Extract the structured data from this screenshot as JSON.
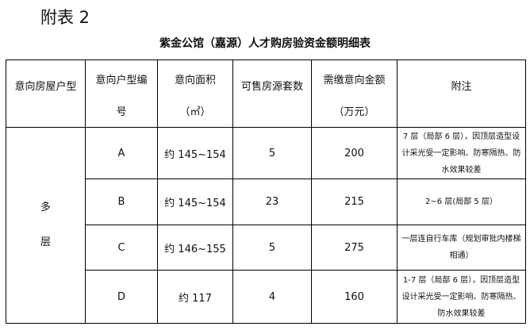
{
  "label": "附表 2",
  "title": "紫金公馆（嘉源）人才购房验资金额明细表",
  "headers": {
    "type": "意向房屋户型",
    "code": [
      "意向户型编",
      "号"
    ],
    "area": [
      "意向面积",
      "（㎡）"
    ],
    "count": "可售房源套数",
    "amount": [
      "需缴意向金额",
      "（万元）"
    ],
    "note": "附注"
  },
  "group": [
    "多",
    "层"
  ],
  "rows": [
    {
      "code": "A",
      "area": "约 145~154",
      "count": "5",
      "amount": "200",
      "note": "7 层（局部 6 层），因顶层造型设计采光受一定影响、防寒隔热、防水效果较差"
    },
    {
      "code": "B",
      "area": "约 145~154",
      "count": "23",
      "amount": "215",
      "note": "2~6 层(局部 5 层）"
    },
    {
      "code": "C",
      "area": "约 146~155",
      "count": "5",
      "amount": "275",
      "note": "一层连自行车库（规划审批内楼梯相通）"
    },
    {
      "code": "D",
      "area": "约 117",
      "count": "4",
      "amount": "160",
      "note": "1-7 层（局部 6 层），因顶层造型设计采光受一定影响、防寒隔热、防水效果较差"
    }
  ]
}
